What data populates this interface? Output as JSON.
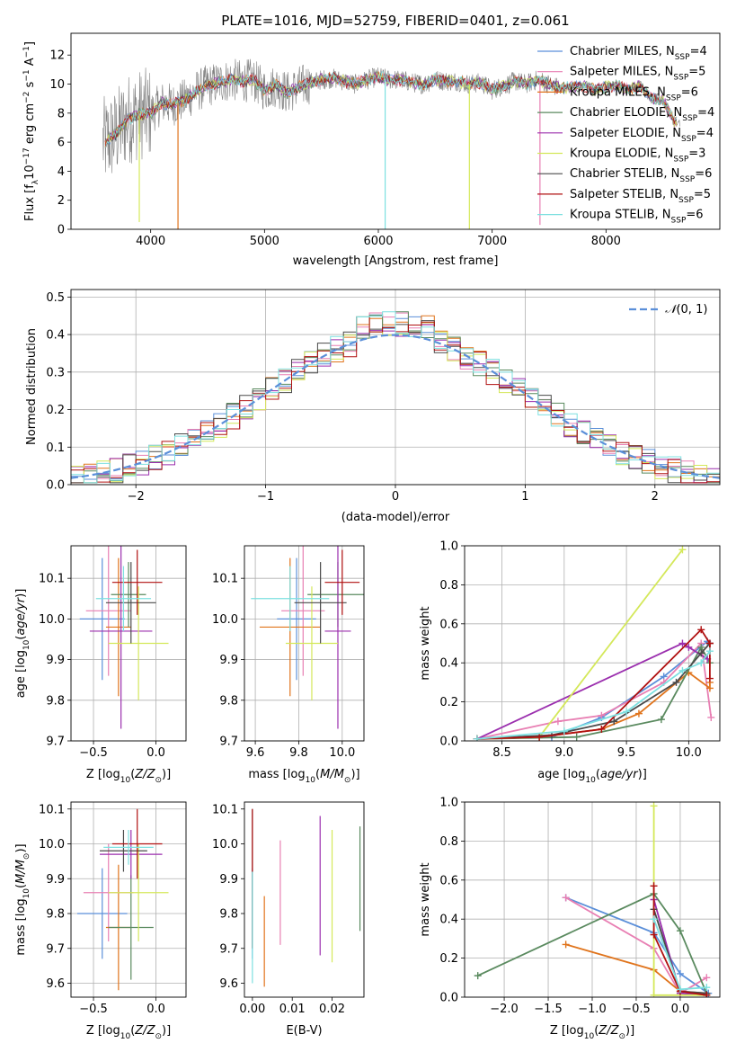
{
  "figure": {
    "title": "PLATE=1016, MJD=52759, FIBERID=0401, z=0.061"
  },
  "colors": {
    "Chabrier MILES": "#5b8fd9",
    "Salpeter MILES": "#e87fb3",
    "Kroupa MILES": "#e0741c",
    "Chabrier ELODIE": "#5a8a5f",
    "Salpeter ELODIE": "#9b2fae",
    "Kroupa ELODIE": "#d4e85a",
    "Chabrier STELIB": "#4a4a4a",
    "Salpeter STELIB": "#b01010",
    "Kroupa STELIB": "#7de0e0",
    "data": "#808080",
    "normal": "#5b8fd9"
  },
  "chart_data": [
    {
      "id": "spectrum",
      "type": "line",
      "xlabel": "wavelength [Angstrom, rest frame]",
      "ylabel": "Flux [f_λ10^-17 erg cm^-2 s^-1 A^-1]",
      "xlim": [
        3300,
        9000
      ],
      "ylim": [
        0,
        13.5
      ],
      "xticks": [
        4000,
        5000,
        6000,
        7000,
        8000
      ],
      "yticks": [
        0,
        2,
        4,
        6,
        8,
        10,
        12
      ],
      "grid": false,
      "legend": "upper right",
      "legend_entries": [
        {
          "label": "Chabrier MILES, N",
          "sub": "SSP",
          "suffix": "=4",
          "model": "Chabrier MILES"
        },
        {
          "label": "Salpeter MILES, N",
          "sub": "SSP",
          "suffix": "=5",
          "model": "Salpeter MILES"
        },
        {
          "label": "Kroupa MILES, N",
          "sub": "SSP",
          "suffix": "=6",
          "model": "Kroupa MILES"
        },
        {
          "label": "Chabrier ELODIE, N",
          "sub": "SSP",
          "suffix": "=4",
          "model": "Chabrier ELODIE"
        },
        {
          "label": "Salpeter ELODIE, N",
          "sub": "SSP",
          "suffix": "=4",
          "model": "Salpeter ELODIE"
        },
        {
          "label": "Kroupa ELODIE, N",
          "sub": "SSP",
          "suffix": "=3",
          "model": "Kroupa ELODIE"
        },
        {
          "label": "Chabrier STELIB, N",
          "sub": "SSP",
          "suffix": "=6",
          "model": "Chabrier STELIB"
        },
        {
          "label": "Salpeter STELIB, N",
          "sub": "SSP",
          "suffix": "=5",
          "model": "Salpeter STELIB"
        },
        {
          "label": "Kroupa STELIB, N",
          "sub": "SSP",
          "suffix": "=6",
          "model": "Kroupa STELIB"
        }
      ],
      "data_x": [
        3600,
        3700,
        3800,
        3900,
        4000,
        4100,
        4200,
        4300,
        4400,
        4500,
        4600,
        4700,
        4800,
        4900,
        5000,
        5100,
        5200,
        5300,
        5400,
        5500,
        5600,
        5700,
        5800,
        5900,
        6000,
        6100,
        6200,
        6300,
        6400,
        6500,
        6600,
        6700,
        6800,
        6900,
        7000,
        7100,
        7200,
        7300,
        7400,
        7500,
        7600,
        7700,
        7800,
        7900,
        8000,
        8100,
        8200,
        8300,
        8400,
        8500,
        8600
      ],
      "model_y": [
        6.0,
        6.6,
        7.6,
        7.9,
        8.0,
        8.7,
        8.6,
        8.9,
        9.5,
        9.9,
        10.1,
        10.3,
        10.2,
        10.3,
        9.6,
        9.9,
        9.4,
        9.8,
        10.1,
        10.3,
        10.4,
        10.2,
        10.0,
        10.3,
        10.5,
        10.3,
        10.3,
        10.1,
        10.0,
        10.3,
        10.2,
        10.2,
        10.0,
        10.1,
        9.6,
        9.9,
        10.2,
        10.0,
        10.3,
        10.0,
        9.7,
        9.8,
        9.9,
        9.6,
        9.8,
        9.9,
        9.6,
        9.9,
        9.0,
        8.9,
        7.4
      ],
      "spikes": [
        {
          "x": 3900,
          "y": 0.5,
          "model": "Kroupa ELODIE"
        },
        {
          "x": 4240,
          "y": 0.0,
          "model": "Kroupa MILES"
        },
        {
          "x": 6060,
          "y": 0.0,
          "model": "Kroupa STELIB"
        },
        {
          "x": 6800,
          "y": 0.0,
          "model": "Kroupa ELODIE"
        },
        {
          "x": 7420,
          "y": 0.3,
          "model": "Salpeter MILES"
        }
      ]
    },
    {
      "id": "residuals",
      "type": "step",
      "xlabel": "(data-model)/error",
      "ylabel": "Normed distribution",
      "xlim": [
        -2.5,
        2.5
      ],
      "ylim": [
        0,
        0.52
      ],
      "xticks": [
        -2,
        -1,
        0,
        1,
        2
      ],
      "yticks": [
        0.0,
        0.1,
        0.2,
        0.3,
        0.4,
        0.5
      ],
      "grid": true,
      "legend": "upper right",
      "legend_entries": [
        {
          "label": "N(0,1)",
          "style": "dashed"
        }
      ],
      "bin_width": 0.1,
      "bin_start": -2.5
    },
    {
      "id": "age-vs-Z",
      "type": "errorbar",
      "xlabel": "Z [log10(Z/Z_sun)]",
      "ylabel": "age [log10(age/yr)]",
      "xlim": [
        -0.68,
        0.24
      ],
      "ylim": [
        9.7,
        10.18
      ],
      "xticks": [
        -0.5,
        0.0
      ],
      "yticks": [
        9.7,
        9.8,
        9.9,
        10.0,
        10.1
      ],
      "grid": true,
      "points": [
        {
          "model": "Chabrier MILES",
          "x": -0.43,
          "xerr": 0.18,
          "y": 10.0,
          "yerr": 0.15
        },
        {
          "model": "Salpeter MILES",
          "x": -0.38,
          "xerr": 0.18,
          "y": 10.02,
          "yerr": 0.16
        },
        {
          "model": "Kroupa MILES",
          "x": -0.3,
          "xerr": 0.1,
          "y": 9.98,
          "yerr": 0.17
        },
        {
          "model": "Chabrier ELODIE",
          "x": -0.22,
          "xerr": 0.14,
          "y": 10.06,
          "yerr": 0.08
        },
        {
          "model": "Salpeter ELODIE",
          "x": -0.28,
          "xerr": 0.25,
          "y": 9.97,
          "yerr": 0.24
        },
        {
          "model": "Kroupa ELODIE",
          "x": -0.14,
          "xerr": 0.24,
          "y": 9.94,
          "yerr": 0.14
        },
        {
          "model": "Chabrier STELIB",
          "x": -0.2,
          "xerr": 0.2,
          "y": 10.04,
          "yerr": 0.1
        },
        {
          "model": "Salpeter STELIB",
          "x": -0.15,
          "xerr": 0.2,
          "y": 10.09,
          "yerr": 0.08
        },
        {
          "model": "Kroupa STELIB",
          "x": -0.26,
          "xerr": 0.22,
          "y": 10.05,
          "yerr": 0.08
        }
      ]
    },
    {
      "id": "age-vs-mass",
      "type": "errorbar",
      "xlabel": "mass [log10(M/M_sun)]",
      "ylabel": "",
      "xlim": [
        9.55,
        10.1
      ],
      "ylim": [
        9.7,
        10.18
      ],
      "xticks": [
        9.6,
        9.8,
        10.0
      ],
      "yticks": [
        9.7,
        9.8,
        9.9,
        10.0,
        10.1
      ],
      "grid": true,
      "points": [
        {
          "model": "Chabrier MILES",
          "x": 9.79,
          "xerr": 0.09,
          "y": 10.0,
          "yerr": 0.15
        },
        {
          "model": "Salpeter MILES",
          "x": 9.82,
          "xerr": 0.1,
          "y": 10.02,
          "yerr": 0.16
        },
        {
          "model": "Kroupa MILES",
          "x": 9.76,
          "xerr": 0.14,
          "y": 9.98,
          "yerr": 0.17
        },
        {
          "model": "Chabrier ELODIE",
          "x": 9.98,
          "xerr": 0.14,
          "y": 10.06,
          "yerr": 0.08
        },
        {
          "model": "Salpeter ELODIE",
          "x": 9.98,
          "xerr": 0.06,
          "y": 9.97,
          "yerr": 0.24
        },
        {
          "model": "Kroupa ELODIE",
          "x": 9.86,
          "xerr": 0.12,
          "y": 9.94,
          "yerr": 0.14
        },
        {
          "model": "Chabrier STELIB",
          "x": 9.9,
          "xerr": 0.12,
          "y": 10.04,
          "yerr": 0.1
        },
        {
          "model": "Salpeter STELIB",
          "x": 10.0,
          "xerr": 0.08,
          "y": 10.09,
          "yerr": 0.08
        },
        {
          "model": "Kroupa STELIB",
          "x": 9.76,
          "xerr": 0.18,
          "y": 10.05,
          "yerr": 0.08
        }
      ]
    },
    {
      "id": "massweight-vs-age",
      "type": "line",
      "xlabel": "age [log10(age/yr)]",
      "ylabel": "mass weight",
      "xlim": [
        8.2,
        10.25
      ],
      "ylim": [
        0,
        1
      ],
      "xticks": [
        8.5,
        9.0,
        9.5,
        10.0
      ],
      "yticks": [
        0.0,
        0.2,
        0.4,
        0.6,
        0.8,
        1.0
      ],
      "grid": true,
      "series": [
        {
          "model": "Chabrier MILES",
          "x": [
            8.3,
            8.9,
            9.3,
            9.8,
            10.15
          ],
          "y": [
            0.01,
            0.02,
            0.12,
            0.33,
            0.51
          ]
        },
        {
          "model": "Salpeter MILES",
          "x": [
            8.3,
            8.95,
            9.3,
            9.8,
            10.1,
            10.18
          ],
          "y": [
            0.01,
            0.1,
            0.13,
            0.3,
            0.5,
            0.12
          ]
        },
        {
          "model": "Kroupa MILES",
          "x": [
            8.3,
            8.8,
            9.3,
            9.6,
            10.0,
            10.17,
            10.17
          ],
          "y": [
            0.01,
            0.02,
            0.06,
            0.14,
            0.35,
            0.27,
            0.3
          ]
        },
        {
          "model": "Chabrier ELODIE",
          "x": [
            8.3,
            9.1,
            9.78,
            10.1,
            10.17
          ],
          "y": [
            0.01,
            0.02,
            0.11,
            0.48,
            0.4
          ]
        },
        {
          "model": "Salpeter ELODIE",
          "x": [
            8.3,
            9.95,
            10.0,
            10.15
          ],
          "y": [
            0.01,
            0.5,
            0.48,
            0.42
          ]
        },
        {
          "model": "Kroupa ELODIE",
          "x": [
            8.3,
            8.8,
            9.95
          ],
          "y": [
            0.01,
            0.02,
            0.98
          ]
        },
        {
          "model": "Chabrier STELIB",
          "x": [
            8.3,
            8.9,
            9.4,
            9.9,
            10.1,
            10.17
          ],
          "y": [
            0.01,
            0.03,
            0.1,
            0.3,
            0.45,
            0.5
          ]
        },
        {
          "model": "Salpeter STELIB",
          "x": [
            8.3,
            8.8,
            9.3,
            10.1,
            10.17,
            10.17
          ],
          "y": [
            0.01,
            0.02,
            0.06,
            0.57,
            0.5,
            0.32
          ]
        },
        {
          "model": "Kroupa STELIB",
          "x": [
            8.3,
            9.0,
            9.5,
            9.95,
            10.1,
            10.17
          ],
          "y": [
            0.01,
            0.05,
            0.15,
            0.36,
            0.4,
            0.46
          ]
        }
      ]
    },
    {
      "id": "mass-vs-Z",
      "type": "errorbar",
      "xlabel": "Z [log10(Z/Z_sun)]",
      "ylabel": "mass [log10(M/M_sun)]",
      "xlim": [
        -0.68,
        0.24
      ],
      "ylim": [
        9.56,
        10.12
      ],
      "xticks": [
        -0.5,
        0.0
      ],
      "yticks": [
        9.6,
        9.7,
        9.8,
        9.9,
        10.0,
        10.1
      ],
      "grid": true,
      "points": [
        {
          "model": "Chabrier MILES",
          "x": -0.43,
          "xerr": 0.2,
          "y": 9.8,
          "yerr": 0.13
        },
        {
          "model": "Salpeter MILES",
          "x": -0.38,
          "xerr": 0.2,
          "y": 9.86,
          "yerr": 0.14
        },
        {
          "model": "Kroupa MILES",
          "x": -0.3,
          "xerr": 0.1,
          "y": 9.76,
          "yerr": 0.18
        },
        {
          "model": "Chabrier ELODIE",
          "x": -0.2,
          "xerr": 0.18,
          "y": 9.76,
          "yerr": 0.15
        },
        {
          "model": "Salpeter ELODIE",
          "x": -0.2,
          "xerr": 0.25,
          "y": 9.97,
          "yerr": 0.07
        },
        {
          "model": "Kroupa ELODIE",
          "x": -0.14,
          "xerr": 0.24,
          "y": 9.86,
          "yerr": 0.14
        },
        {
          "model": "Chabrier STELIB",
          "x": -0.26,
          "xerr": 0.19,
          "y": 9.98,
          "yerr": 0.06
        },
        {
          "model": "Salpeter STELIB",
          "x": -0.15,
          "xerr": 0.2,
          "y": 10.0,
          "yerr": 0.1
        },
        {
          "model": "Kroupa STELIB",
          "x": -0.22,
          "xerr": 0.2,
          "y": 9.99,
          "yerr": 0.05
        }
      ]
    },
    {
      "id": "mass-vs-ebv",
      "type": "errorbar",
      "xlabel": "E(B-V)",
      "ylabel": "",
      "xlim": [
        -0.002,
        0.028
      ],
      "ylim": [
        9.56,
        10.12
      ],
      "xticks": [
        0.0,
        0.01,
        0.02
      ],
      "yticks": [
        9.6,
        9.7,
        9.8,
        9.9,
        10.0,
        10.1
      ],
      "grid": false,
      "points": [
        {
          "model": "Chabrier MILES",
          "x": 0.0,
          "y": 9.8,
          "yerr": 0.13
        },
        {
          "model": "Salpeter MILES",
          "x": 0.007,
          "y": 9.86,
          "yerr": 0.15
        },
        {
          "model": "Kroupa MILES",
          "x": 0.003,
          "y": 9.72,
          "yerr": 0.13
        },
        {
          "model": "Chabrier ELODIE",
          "x": 0.027,
          "y": 9.9,
          "yerr": 0.15
        },
        {
          "model": "Salpeter ELODIE",
          "x": 0.017,
          "y": 9.88,
          "yerr": 0.2
        },
        {
          "model": "Kroupa ELODIE",
          "x": 0.02,
          "y": 9.85,
          "yerr": 0.19
        },
        {
          "model": "Chabrier STELIB",
          "x": 0.0,
          "y": 9.9,
          "yerr": 0.2
        },
        {
          "model": "Salpeter STELIB",
          "x": 0.0,
          "y": 9.9,
          "yerr": 0.2
        },
        {
          "model": "Kroupa STELIB",
          "x": 0.0,
          "y": 9.76,
          "yerr": 0.16
        }
      ]
    },
    {
      "id": "massweight-vs-Z",
      "type": "line",
      "xlabel": "Z [log10(Z/Z_sun)]",
      "ylabel": "mass weight",
      "xlim": [
        -2.45,
        0.45
      ],
      "ylim": [
        0,
        1
      ],
      "xticks": [
        -2.0,
        -1.5,
        -1.0,
        -0.5,
        0.0
      ],
      "yticks": [
        0.0,
        0.2,
        0.4,
        0.6,
        0.8,
        1.0
      ],
      "grid": true,
      "series": [
        {
          "model": "Chabrier MILES",
          "x": [
            -1.3,
            -0.3,
            0.0,
            0.32
          ],
          "y": [
            0.51,
            0.33,
            0.12,
            0.02
          ]
        },
        {
          "model": "Salpeter MILES",
          "x": [
            -1.3,
            -0.3,
            0.0,
            0.3
          ],
          "y": [
            0.51,
            0.25,
            0.02,
            0.1
          ]
        },
        {
          "model": "Kroupa MILES",
          "x": [
            -1.3,
            -0.3,
            0.0,
            0.3
          ],
          "y": [
            0.27,
            0.14,
            0.03,
            0.02
          ]
        },
        {
          "model": "Chabrier ELODIE",
          "x": [
            -2.3,
            -0.3,
            0.0,
            0.3
          ],
          "y": [
            0.11,
            0.53,
            0.34,
            0.02
          ]
        },
        {
          "model": "Salpeter ELODIE",
          "x": [
            -0.3,
            0.0,
            0.3
          ],
          "y": [
            0.5,
            0.02,
            0.01
          ]
        },
        {
          "model": "Kroupa ELODIE",
          "x": [
            -0.3,
            -0.3,
            0.3
          ],
          "y": [
            0.98,
            0.01,
            0.01
          ]
        },
        {
          "model": "Chabrier STELIB",
          "x": [
            -0.3,
            0.0,
            0.3
          ],
          "y": [
            0.45,
            0.03,
            0.02
          ]
        },
        {
          "model": "Salpeter STELIB",
          "x": [
            -0.3,
            -0.3,
            0.0,
            0.3
          ],
          "y": [
            0.57,
            0.32,
            0.03,
            0.01
          ]
        },
        {
          "model": "Kroupa STELIB",
          "x": [
            -0.3,
            0.0,
            0.3
          ],
          "y": [
            0.4,
            0.04,
            0.05
          ]
        }
      ]
    }
  ]
}
